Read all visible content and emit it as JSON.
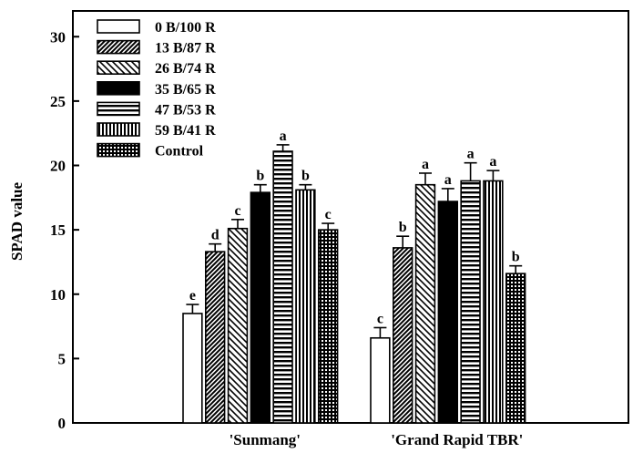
{
  "chart_data": {
    "type": "bar",
    "title": "",
    "xlabel": "",
    "ylabel": "SPAD value",
    "ylim": [
      0,
      32
    ],
    "yticks": [
      0,
      5,
      10,
      15,
      20,
      25,
      30
    ],
    "categories": [
      "'Sunmang'",
      "'Grand Rapid TBR'"
    ],
    "series": [
      {
        "name": "0 B/100 R",
        "pattern": "white",
        "values": [
          8.5,
          6.6
        ],
        "errors": [
          0.7,
          0.8
        ],
        "letters": [
          "e",
          "c"
        ]
      },
      {
        "name": "13 B/87 R",
        "pattern": "diag-right-dense",
        "values": [
          13.3,
          13.6
        ],
        "errors": [
          0.6,
          0.9
        ],
        "letters": [
          "d",
          "b"
        ]
      },
      {
        "name": "26 B/74 R",
        "pattern": "diag-left",
        "values": [
          15.1,
          18.5
        ],
        "errors": [
          0.7,
          0.9
        ],
        "letters": [
          "c",
          "a"
        ]
      },
      {
        "name": "35 B/65 R",
        "pattern": "black",
        "values": [
          17.9,
          17.2
        ],
        "errors": [
          0.6,
          1.0
        ],
        "letters": [
          "b",
          "a"
        ]
      },
      {
        "name": "47 B/53 R",
        "pattern": "horizontal",
        "values": [
          21.1,
          18.8
        ],
        "errors": [
          0.5,
          1.4
        ],
        "letters": [
          "a",
          "a"
        ]
      },
      {
        "name": "59 B/41 R",
        "pattern": "vertical",
        "values": [
          18.1,
          18.8
        ],
        "errors": [
          0.4,
          0.8
        ],
        "letters": [
          "b",
          "a"
        ]
      },
      {
        "name": "Control",
        "pattern": "grid",
        "values": [
          15.0,
          11.6
        ],
        "errors": [
          0.5,
          0.6
        ],
        "letters": [
          "c",
          "b"
        ]
      }
    ],
    "grid": false,
    "legend_position": "top-left"
  }
}
